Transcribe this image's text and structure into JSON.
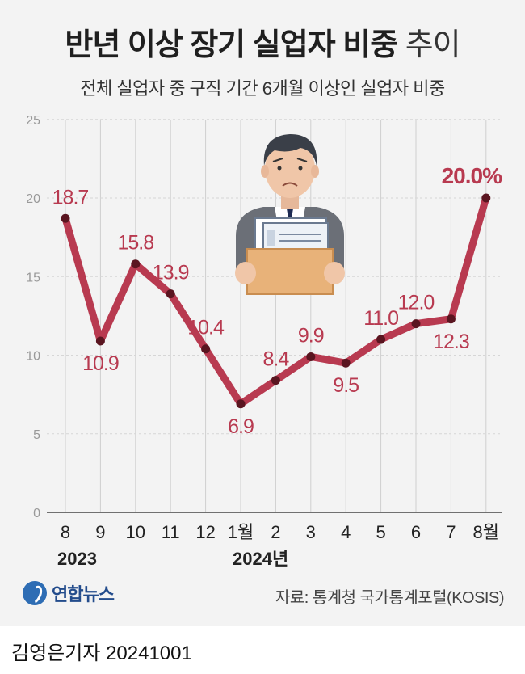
{
  "header": {
    "title_bold": "반년 이상 장기 실업자 비중",
    "title_light": "추이",
    "subtitle": "전체 실업자 중 구직 기간 6개월 이상인 실업자 비중"
  },
  "chart_data": {
    "type": "line",
    "categories": [
      "8",
      "9",
      "10",
      "11",
      "12",
      "1월",
      "2",
      "3",
      "4",
      "5",
      "6",
      "7",
      "8월"
    ],
    "values": [
      18.7,
      10.9,
      15.8,
      13.9,
      10.4,
      6.9,
      8.4,
      9.9,
      9.5,
      11.0,
      12.0,
      12.3,
      20.0
    ],
    "value_labels": [
      "18.7",
      "10.9",
      "15.8",
      "13.9",
      "10.4",
      "6.9",
      "8.4",
      "9.9",
      "9.5",
      "11.0",
      "12.0",
      "12.3",
      "20.0%"
    ],
    "year_labels": [
      "2023",
      "2024년"
    ],
    "yticks": [
      "0",
      "5",
      "10",
      "15",
      "20",
      "25"
    ],
    "ylim": [
      0,
      25
    ],
    "grid": "vertical",
    "line_color": "#b83a50",
    "marker_color": "#5a1520"
  },
  "footer": {
    "logo_text": "연합뉴스",
    "source": "자료: 통계청 국가통계포털(KOSIS)",
    "byline": "김영은기자  20241001"
  }
}
